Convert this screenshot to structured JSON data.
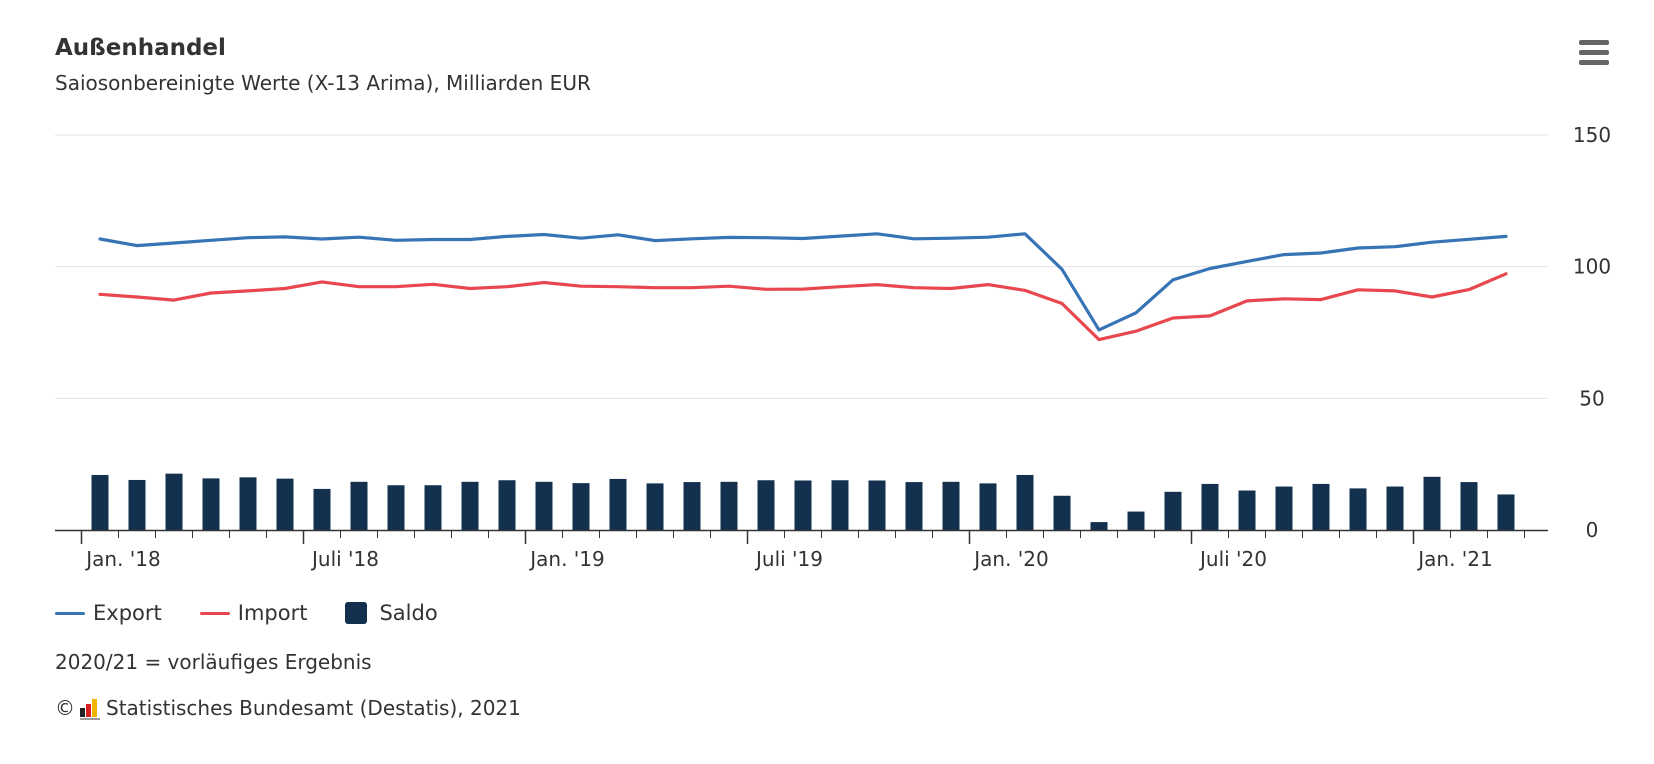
{
  "header": {
    "title": "Außenhandel",
    "subtitle": "Saiosonbereinigte Werte (X-13 Arima), Milliarden EUR"
  },
  "menu": {
    "icon": "hamburger-menu-icon"
  },
  "legend": {
    "items": [
      {
        "label": "Export",
        "color": "#3674b5"
      },
      {
        "label": "Import",
        "color": "#e8474f"
      },
      {
        "label": "Saldo",
        "color": "#13314f"
      }
    ]
  },
  "footnote": "2020/21 = vorläufiges Ergebnis",
  "credits": {
    "copyright": "©",
    "text": "Statistisches Bundesamt (Destatis), 2021",
    "logo_colors": [
      "#222222",
      "#d81e1e",
      "#f4b500"
    ]
  },
  "chart_data": {
    "type": "line",
    "x": [
      "2018-01",
      "2018-02",
      "2018-03",
      "2018-04",
      "2018-05",
      "2018-06",
      "2018-07",
      "2018-08",
      "2018-09",
      "2018-10",
      "2018-11",
      "2018-12",
      "2019-01",
      "2019-02",
      "2019-03",
      "2019-04",
      "2019-05",
      "2019-06",
      "2019-07",
      "2019-08",
      "2019-09",
      "2019-10",
      "2019-11",
      "2019-12",
      "2020-01",
      "2020-02",
      "2020-03",
      "2020-04",
      "2020-05",
      "2020-06",
      "2020-07",
      "2020-08",
      "2020-09",
      "2020-10",
      "2020-11",
      "2020-12",
      "2021-01",
      "2021-02",
      "2021-03"
    ],
    "tick_labels": [
      {
        "x": "2018-01",
        "label": "Jan. '18"
      },
      {
        "x": "2018-07",
        "label": "Juli '18"
      },
      {
        "x": "2019-01",
        "label": "Jan. '19"
      },
      {
        "x": "2019-07",
        "label": "Juli '19"
      },
      {
        "x": "2020-01",
        "label": "Jan. '20"
      },
      {
        "x": "2020-07",
        "label": "Juli '20"
      },
      {
        "x": "2021-01",
        "label": "Jan. '21"
      }
    ],
    "series": [
      {
        "name": "Export",
        "type": "line",
        "color": "#3674b5",
        "values": [
          110.5,
          108,
          109,
          110,
          111,
          111.3,
          110.5,
          111.2,
          110,
          110.3,
          110.3,
          111.5,
          112.2,
          110.8,
          112.1,
          109.9,
          110.6,
          111.1,
          111,
          110.7,
          111.6,
          112.5,
          110.6,
          110.8,
          111.2,
          112.5,
          99,
          76,
          82.5,
          95,
          99.3,
          102,
          104.6,
          105.2,
          107.1,
          107.6,
          109.3,
          110.4,
          111.5
        ]
      },
      {
        "name": "Import",
        "type": "line",
        "color": "#e8474f",
        "values": [
          89.5,
          88.5,
          87.3,
          90,
          90.8,
          91.7,
          94.2,
          92.4,
          92.4,
          93.3,
          91.7,
          92.4,
          94,
          92.6,
          92.4,
          92,
          92,
          92.6,
          91.4,
          91.5,
          92.4,
          93.2,
          92,
          91.7,
          93.2,
          91,
          86,
          72.3,
          75.5,
          80.5,
          81.3,
          87,
          87.8,
          87.5,
          91.2,
          90.8,
          88.5,
          91.3,
          97.3
        ]
      },
      {
        "name": "Saldo",
        "type": "bar",
        "color": "#13314f",
        "values": [
          20.9,
          19,
          21.4,
          19.6,
          20,
          19.5,
          15.6,
          18.3,
          17,
          17,
          18.3,
          18.9,
          18.3,
          17.8,
          19.4,
          17.7,
          18.2,
          18.3,
          18.9,
          18.8,
          18.9,
          18.8,
          18.2,
          18.3,
          17.7,
          20.9,
          13,
          3,
          7,
          14.5,
          17.5,
          15,
          16.5,
          17.5,
          15.8,
          16.5,
          20.2,
          18.2,
          13.5
        ]
      }
    ],
    "y_ticks": [
      0,
      50,
      100,
      150
    ],
    "ylim": [
      0,
      150
    ],
    "grid": true,
    "legend_position": "bottom-left"
  }
}
